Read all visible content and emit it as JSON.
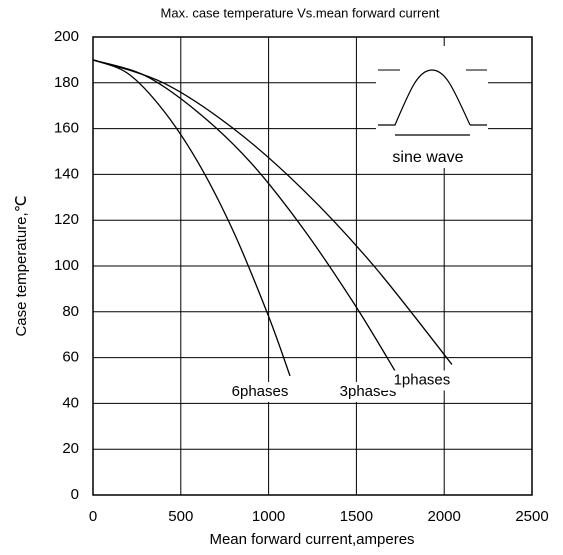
{
  "chart_data": {
    "type": "line",
    "title": "Max. case temperature  Vs.mean forward current",
    "x_label": "Mean forward  current,amperes",
    "y_label": "Case temperature,℃",
    "series": [
      {
        "name": "6phases",
        "color": "#000000",
        "x": [
          0,
          200,
          400,
          600,
          800,
          1000,
          1122
        ],
        "values": [
          190,
          184,
          168,
          145,
          115,
          78,
          52
        ]
      },
      {
        "name": "3phases",
        "color": "#000000",
        "x": [
          0,
          300,
          600,
          900,
          1200,
          1500,
          1737
        ],
        "values": [
          190,
          183,
          167,
          145,
          116,
          82,
          52
        ]
      },
      {
        "name": "1phases",
        "color": "#000000",
        "x": [
          0,
          400,
          800,
          1200,
          1600,
          2044
        ],
        "values": [
          190,
          180,
          160,
          133,
          100,
          57
        ]
      }
    ],
    "annotations": [
      "sine wave"
    ],
    "xlim": [
      0,
      2500
    ],
    "xticks": [
      0,
      500,
      1000,
      1500,
      2000,
      2500
    ],
    "ylim": [
      0,
      200
    ],
    "yticks": [
      0,
      20,
      40,
      60,
      80,
      100,
      120,
      140,
      160,
      180,
      200
    ],
    "grid": true
  }
}
